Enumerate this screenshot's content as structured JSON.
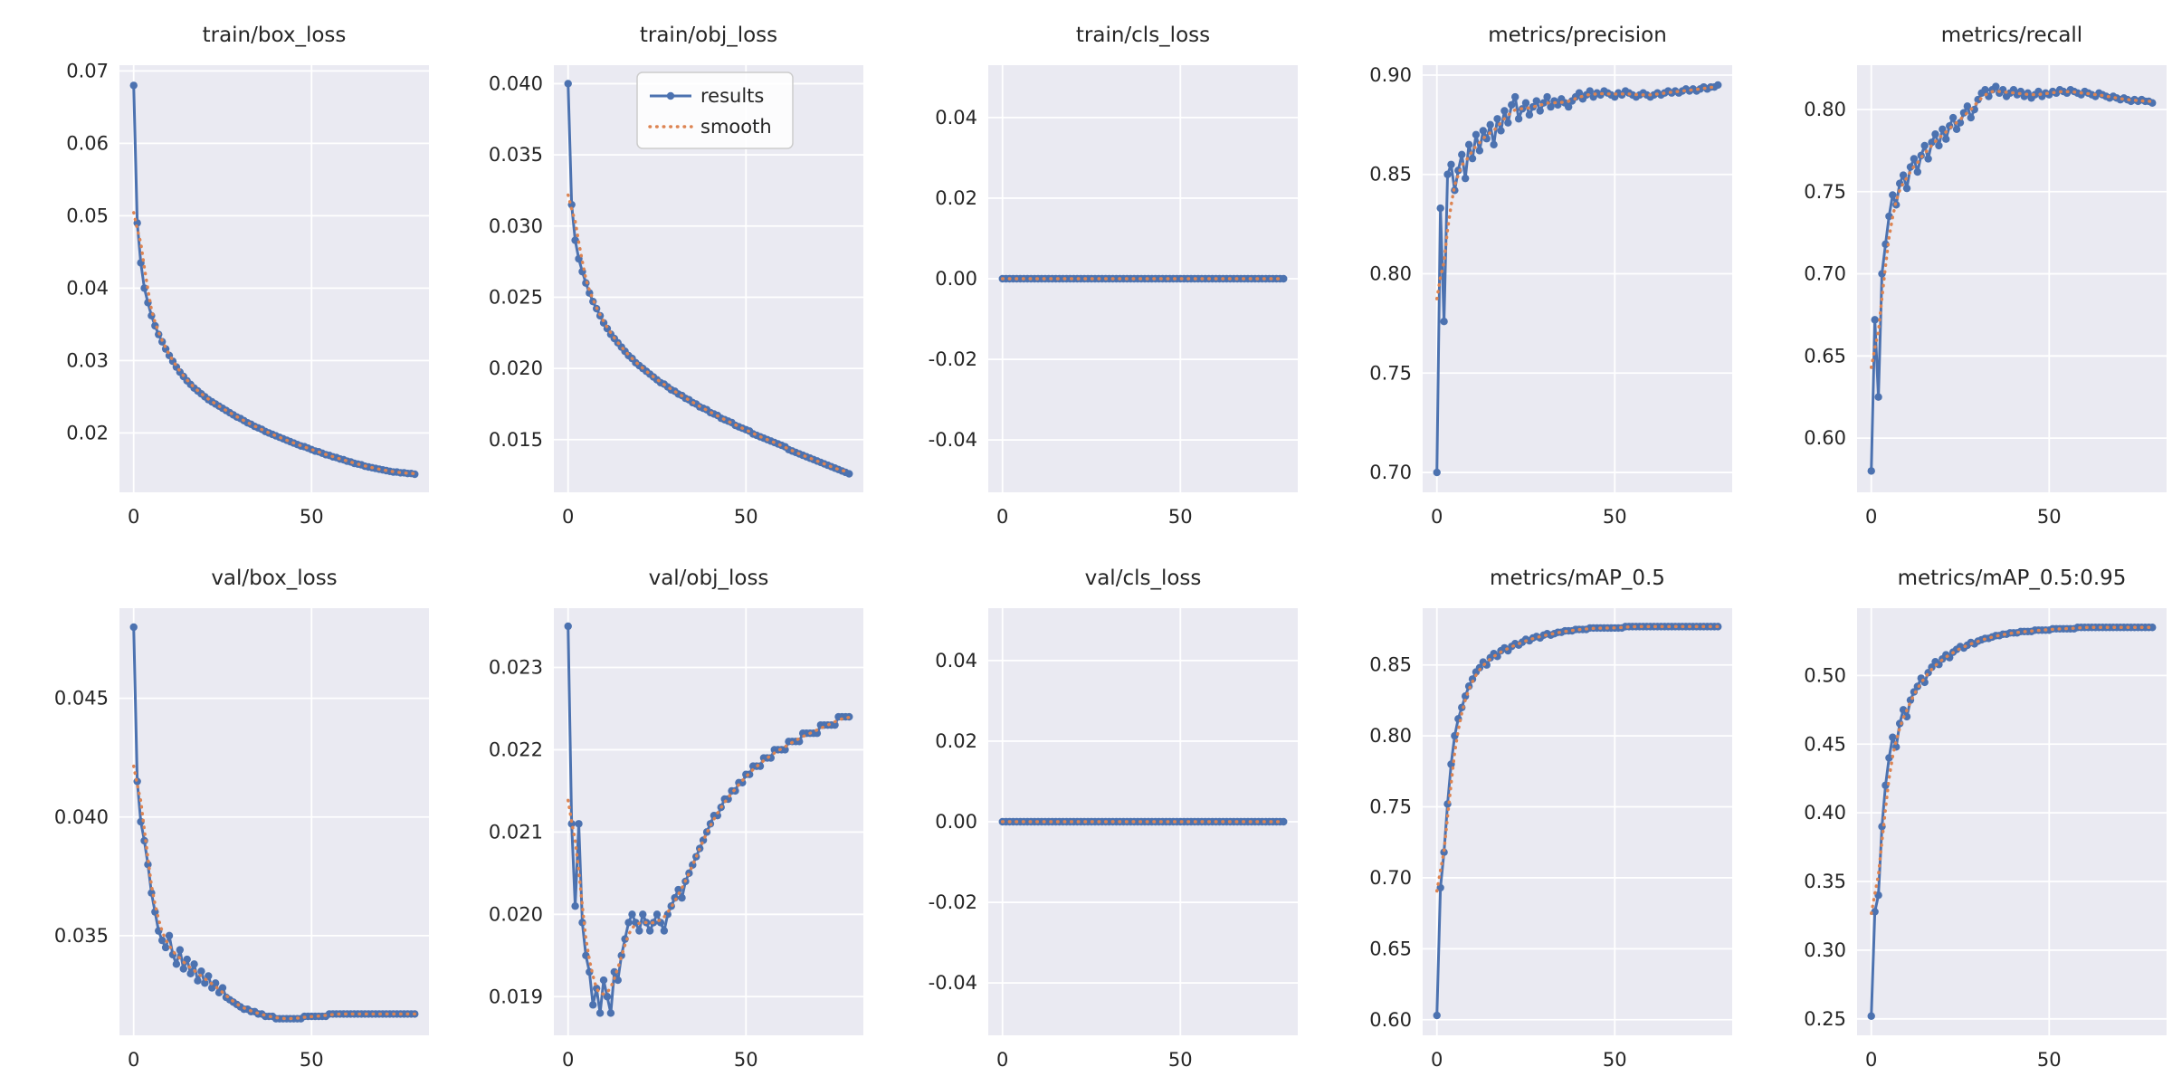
{
  "style": {
    "axes_bg": "#eaeaf2",
    "grid_color": "#ffffff",
    "results_color": "#4c72b0",
    "smooth_color": "#dd8452",
    "text_color": "#262626",
    "figure_bg": "#ffffff"
  },
  "legend": {
    "entries": [
      "results",
      "smooth"
    ]
  },
  "chart_data": [
    {
      "type": "line",
      "title": "train/box_loss",
      "x_start": 0,
      "x_step": 1,
      "xlim": [
        -4,
        83
      ],
      "xticks": [
        0,
        50
      ],
      "xtick_labels": [
        "0",
        "50"
      ],
      "ylim": [
        0.0118,
        0.0708
      ],
      "yticks": [
        0.02,
        0.03,
        0.04,
        0.05,
        0.06,
        0.07
      ],
      "ytick_labels": [
        "0.02",
        "0.03",
        "0.04",
        "0.05",
        "0.06",
        "0.07"
      ],
      "show_legend": false,
      "values": [
        0.068,
        0.049,
        0.0435,
        0.04,
        0.038,
        0.0362,
        0.0348,
        0.0336,
        0.0326,
        0.0316,
        0.0307,
        0.0299,
        0.0291,
        0.0284,
        0.0278,
        0.0272,
        0.0267,
        0.0262,
        0.0258,
        0.0254,
        0.025,
        0.0246,
        0.0243,
        0.024,
        0.0237,
        0.0234,
        0.0231,
        0.0228,
        0.0225,
        0.0222,
        0.022,
        0.0217,
        0.0214,
        0.0212,
        0.0209,
        0.0207,
        0.0205,
        0.0202,
        0.02,
        0.0198,
        0.0196,
        0.0194,
        0.0192,
        0.019,
        0.0188,
        0.0186,
        0.0184,
        0.0182,
        0.0181,
        0.0179,
        0.0177,
        0.0175,
        0.0174,
        0.0172,
        0.017,
        0.0169,
        0.0167,
        0.0166,
        0.0164,
        0.0163,
        0.0161,
        0.016,
        0.0158,
        0.0157,
        0.0156,
        0.0154,
        0.0153,
        0.0152,
        0.0151,
        0.015,
        0.0149,
        0.0148,
        0.0147,
        0.0146,
        0.0146,
        0.0145,
        0.0145,
        0.0144,
        0.0144,
        0.0143
      ]
    },
    {
      "type": "line",
      "title": "train/obj_loss",
      "x_start": 0,
      "x_step": 1,
      "xlim": [
        -4,
        83
      ],
      "xticks": [
        0,
        50
      ],
      "xtick_labels": [
        "0",
        "50"
      ],
      "ylim": [
        0.0113,
        0.0413
      ],
      "yticks": [
        0.015,
        0.02,
        0.025,
        0.03,
        0.035,
        0.04
      ],
      "ytick_labels": [
        "0.015",
        "0.020",
        "0.025",
        "0.030",
        "0.035",
        "0.040"
      ],
      "show_legend": true,
      "values": [
        0.04,
        0.0315,
        0.029,
        0.0277,
        0.0268,
        0.026,
        0.0253,
        0.0247,
        0.0242,
        0.0237,
        0.0232,
        0.0228,
        0.0224,
        0.0221,
        0.0218,
        0.0215,
        0.0212,
        0.0209,
        0.0207,
        0.0204,
        0.0202,
        0.02,
        0.0198,
        0.0196,
        0.0194,
        0.0192,
        0.019,
        0.0189,
        0.0187,
        0.0185,
        0.0184,
        0.0182,
        0.0181,
        0.0179,
        0.0178,
        0.0176,
        0.0175,
        0.0173,
        0.0172,
        0.0171,
        0.0169,
        0.0168,
        0.0167,
        0.0165,
        0.0164,
        0.0163,
        0.0162,
        0.016,
        0.0159,
        0.0158,
        0.0157,
        0.0156,
        0.0154,
        0.0153,
        0.0152,
        0.0151,
        0.015,
        0.0149,
        0.0148,
        0.0147,
        0.0146,
        0.0145,
        0.0143,
        0.0142,
        0.0141,
        0.014,
        0.0139,
        0.0138,
        0.0137,
        0.0136,
        0.0135,
        0.0134,
        0.0133,
        0.0132,
        0.0131,
        0.013,
        0.0129,
        0.0128,
        0.0127,
        0.0126
      ]
    },
    {
      "type": "line",
      "title": "train/cls_loss",
      "x_start": 0,
      "x_step": 1,
      "xlim": [
        -4,
        83
      ],
      "xticks": [
        0,
        50
      ],
      "xtick_labels": [
        "0",
        "50"
      ],
      "ylim": [
        -0.053,
        0.053
      ],
      "yticks": [
        -0.04,
        -0.02,
        0.0,
        0.02,
        0.04
      ],
      "ytick_labels": [
        "-0.04",
        "-0.02",
        "0.00",
        "0.02",
        "0.04"
      ],
      "show_legend": false,
      "values": [
        0,
        0,
        0,
        0,
        0,
        0,
        0,
        0,
        0,
        0,
        0,
        0,
        0,
        0,
        0,
        0,
        0,
        0,
        0,
        0,
        0,
        0,
        0,
        0,
        0,
        0,
        0,
        0,
        0,
        0,
        0,
        0,
        0,
        0,
        0,
        0,
        0,
        0,
        0,
        0,
        0,
        0,
        0,
        0,
        0,
        0,
        0,
        0,
        0,
        0,
        0,
        0,
        0,
        0,
        0,
        0,
        0,
        0,
        0,
        0,
        0,
        0,
        0,
        0,
        0,
        0,
        0,
        0,
        0,
        0,
        0,
        0,
        0,
        0,
        0,
        0,
        0,
        0,
        0,
        0
      ]
    },
    {
      "type": "line",
      "title": "metrics/precision",
      "x_start": 0,
      "x_step": 1,
      "xlim": [
        -4,
        83
      ],
      "xticks": [
        0,
        50
      ],
      "xtick_labels": [
        "0",
        "50"
      ],
      "ylim": [
        0.69,
        0.905
      ],
      "yticks": [
        0.7,
        0.75,
        0.8,
        0.85,
        0.9
      ],
      "ytick_labels": [
        "0.70",
        "0.75",
        "0.80",
        "0.85",
        "0.90"
      ],
      "show_legend": false,
      "values": [
        0.7,
        0.833,
        0.776,
        0.85,
        0.855,
        0.842,
        0.852,
        0.86,
        0.848,
        0.865,
        0.858,
        0.87,
        0.862,
        0.872,
        0.868,
        0.875,
        0.865,
        0.878,
        0.872,
        0.882,
        0.876,
        0.885,
        0.889,
        0.878,
        0.883,
        0.886,
        0.88,
        0.884,
        0.887,
        0.882,
        0.886,
        0.889,
        0.884,
        0.887,
        0.885,
        0.888,
        0.886,
        0.884,
        0.887,
        0.889,
        0.891,
        0.888,
        0.89,
        0.892,
        0.889,
        0.891,
        0.89,
        0.892,
        0.891,
        0.89,
        0.889,
        0.891,
        0.89,
        0.892,
        0.891,
        0.89,
        0.889,
        0.89,
        0.891,
        0.89,
        0.889,
        0.89,
        0.891,
        0.89,
        0.891,
        0.892,
        0.891,
        0.892,
        0.891,
        0.892,
        0.893,
        0.892,
        0.893,
        0.892,
        0.893,
        0.894,
        0.893,
        0.894,
        0.894,
        0.895
      ]
    },
    {
      "type": "line",
      "title": "metrics/recall",
      "x_start": 0,
      "x_step": 1,
      "xlim": [
        -4,
        83
      ],
      "xticks": [
        0,
        50
      ],
      "xtick_labels": [
        "0",
        "50"
      ],
      "ylim": [
        0.567,
        0.827
      ],
      "yticks": [
        0.6,
        0.65,
        0.7,
        0.75,
        0.8
      ],
      "ytick_labels": [
        "0.60",
        "0.65",
        "0.70",
        "0.75",
        "0.80"
      ],
      "show_legend": false,
      "values": [
        0.58,
        0.672,
        0.625,
        0.7,
        0.718,
        0.735,
        0.748,
        0.742,
        0.755,
        0.76,
        0.752,
        0.765,
        0.77,
        0.762,
        0.772,
        0.778,
        0.77,
        0.78,
        0.785,
        0.778,
        0.788,
        0.782,
        0.79,
        0.795,
        0.788,
        0.792,
        0.798,
        0.802,
        0.795,
        0.8,
        0.806,
        0.81,
        0.812,
        0.808,
        0.812,
        0.814,
        0.81,
        0.812,
        0.808,
        0.81,
        0.812,
        0.809,
        0.811,
        0.808,
        0.81,
        0.807,
        0.809,
        0.811,
        0.808,
        0.81,
        0.809,
        0.811,
        0.81,
        0.812,
        0.811,
        0.81,
        0.812,
        0.811,
        0.81,
        0.809,
        0.811,
        0.81,
        0.809,
        0.808,
        0.81,
        0.809,
        0.808,
        0.807,
        0.808,
        0.807,
        0.806,
        0.807,
        0.806,
        0.805,
        0.806,
        0.805,
        0.806,
        0.805,
        0.805,
        0.804
      ]
    },
    {
      "type": "line",
      "title": "val/box_loss",
      "x_start": 0,
      "x_step": 1,
      "xlim": [
        -4,
        83
      ],
      "xticks": [
        0,
        50
      ],
      "xtick_labels": [
        "0",
        "50"
      ],
      "ylim": [
        0.0308,
        0.0488
      ],
      "yticks": [
        0.035,
        0.04,
        0.045
      ],
      "ytick_labels": [
        "0.035",
        "0.040",
        "0.045"
      ],
      "show_legend": false,
      "values": [
        0.048,
        0.0415,
        0.0398,
        0.039,
        0.038,
        0.0368,
        0.036,
        0.0352,
        0.0348,
        0.0345,
        0.035,
        0.0342,
        0.0338,
        0.0344,
        0.0336,
        0.034,
        0.0334,
        0.0338,
        0.0331,
        0.0335,
        0.033,
        0.0333,
        0.0328,
        0.033,
        0.0326,
        0.0328,
        0.0324,
        0.0323,
        0.0322,
        0.0321,
        0.032,
        0.0319,
        0.0319,
        0.0318,
        0.0318,
        0.0317,
        0.0317,
        0.0316,
        0.0316,
        0.0316,
        0.0315,
        0.0315,
        0.0315,
        0.0315,
        0.0315,
        0.0315,
        0.0315,
        0.0315,
        0.0316,
        0.0316,
        0.0316,
        0.0316,
        0.0316,
        0.0316,
        0.0316,
        0.0317,
        0.0317,
        0.0317,
        0.0317,
        0.0317,
        0.0317,
        0.0317,
        0.0317,
        0.0317,
        0.0317,
        0.0317,
        0.0317,
        0.0317,
        0.0317,
        0.0317,
        0.0317,
        0.0317,
        0.0317,
        0.0317,
        0.0317,
        0.0317,
        0.0317,
        0.0317,
        0.0317,
        0.0317
      ]
    },
    {
      "type": "line",
      "title": "val/obj_loss",
      "x_start": 0,
      "x_step": 1,
      "xlim": [
        -4,
        83
      ],
      "xticks": [
        0,
        50
      ],
      "xtick_labels": [
        "0",
        "50"
      ],
      "ylim": [
        0.01853,
        0.02372
      ],
      "yticks": [
        0.019,
        0.02,
        0.021,
        0.022,
        0.023
      ],
      "ytick_labels": [
        "0.019",
        "0.020",
        "0.021",
        "0.022",
        "0.023"
      ],
      "show_legend": false,
      "values": [
        0.0235,
        0.0211,
        0.0201,
        0.0211,
        0.0199,
        0.0195,
        0.0193,
        0.0189,
        0.0191,
        0.0188,
        0.0192,
        0.019,
        0.0188,
        0.0193,
        0.0192,
        0.0195,
        0.0197,
        0.0199,
        0.02,
        0.0199,
        0.0198,
        0.02,
        0.0199,
        0.0198,
        0.0199,
        0.02,
        0.0199,
        0.0198,
        0.02,
        0.0201,
        0.0202,
        0.0203,
        0.0202,
        0.0204,
        0.0205,
        0.0206,
        0.0207,
        0.0208,
        0.0209,
        0.021,
        0.0211,
        0.0212,
        0.0212,
        0.0213,
        0.0214,
        0.0214,
        0.0215,
        0.0215,
        0.0216,
        0.0216,
        0.0217,
        0.0217,
        0.0218,
        0.0218,
        0.0218,
        0.0219,
        0.0219,
        0.0219,
        0.022,
        0.022,
        0.022,
        0.022,
        0.0221,
        0.0221,
        0.0221,
        0.0221,
        0.0222,
        0.0222,
        0.0222,
        0.0222,
        0.0222,
        0.0223,
        0.0223,
        0.0223,
        0.0223,
        0.0223,
        0.0224,
        0.0224,
        0.0224,
        0.0224
      ]
    },
    {
      "type": "line",
      "title": "val/cls_loss",
      "x_start": 0,
      "x_step": 1,
      "xlim": [
        -4,
        83
      ],
      "xticks": [
        0,
        50
      ],
      "xtick_labels": [
        "0",
        "50"
      ],
      "ylim": [
        -0.053,
        0.053
      ],
      "yticks": [
        -0.04,
        -0.02,
        0.0,
        0.02,
        0.04
      ],
      "ytick_labels": [
        "-0.04",
        "-0.02",
        "0.00",
        "0.02",
        "0.04"
      ],
      "show_legend": false,
      "values": [
        0,
        0,
        0,
        0,
        0,
        0,
        0,
        0,
        0,
        0,
        0,
        0,
        0,
        0,
        0,
        0,
        0,
        0,
        0,
        0,
        0,
        0,
        0,
        0,
        0,
        0,
        0,
        0,
        0,
        0,
        0,
        0,
        0,
        0,
        0,
        0,
        0,
        0,
        0,
        0,
        0,
        0,
        0,
        0,
        0,
        0,
        0,
        0,
        0,
        0,
        0,
        0,
        0,
        0,
        0,
        0,
        0,
        0,
        0,
        0,
        0,
        0,
        0,
        0,
        0,
        0,
        0,
        0,
        0,
        0,
        0,
        0,
        0,
        0,
        0,
        0,
        0,
        0,
        0,
        0
      ]
    },
    {
      "type": "line",
      "title": "metrics/mAP_0.5",
      "x_start": 0,
      "x_step": 1,
      "xlim": [
        -4,
        83
      ],
      "xticks": [
        0,
        50
      ],
      "xtick_labels": [
        "0",
        "50"
      ],
      "ylim": [
        0.589,
        0.89
      ],
      "yticks": [
        0.6,
        0.65,
        0.7,
        0.75,
        0.8,
        0.85
      ],
      "ytick_labels": [
        "0.60",
        "0.65",
        "0.70",
        "0.75",
        "0.80",
        "0.85"
      ],
      "show_legend": false,
      "values": [
        0.603,
        0.693,
        0.718,
        0.752,
        0.78,
        0.8,
        0.812,
        0.82,
        0.828,
        0.835,
        0.84,
        0.845,
        0.848,
        0.852,
        0.85,
        0.855,
        0.858,
        0.856,
        0.86,
        0.862,
        0.86,
        0.863,
        0.865,
        0.864,
        0.866,
        0.868,
        0.867,
        0.869,
        0.87,
        0.869,
        0.871,
        0.872,
        0.871,
        0.872,
        0.873,
        0.873,
        0.874,
        0.874,
        0.874,
        0.875,
        0.875,
        0.875,
        0.875,
        0.876,
        0.876,
        0.876,
        0.876,
        0.876,
        0.876,
        0.876,
        0.876,
        0.876,
        0.876,
        0.877,
        0.877,
        0.877,
        0.877,
        0.877,
        0.877,
        0.877,
        0.877,
        0.877,
        0.877,
        0.877,
        0.877,
        0.877,
        0.877,
        0.877,
        0.877,
        0.877,
        0.877,
        0.877,
        0.877,
        0.877,
        0.877,
        0.877,
        0.877,
        0.877,
        0.877,
        0.877
      ]
    },
    {
      "type": "line",
      "title": "metrics/mAP_0.5:0.95",
      "x_start": 0,
      "x_step": 1,
      "xlim": [
        -4,
        83
      ],
      "xticks": [
        0,
        50
      ],
      "xtick_labels": [
        "0",
        "50"
      ],
      "ylim": [
        0.238,
        0.549
      ],
      "yticks": [
        0.25,
        0.3,
        0.35,
        0.4,
        0.45,
        0.5
      ],
      "ytick_labels": [
        "0.25",
        "0.30",
        "0.35",
        "0.40",
        "0.45",
        "0.50"
      ],
      "show_legend": false,
      "values": [
        0.252,
        0.328,
        0.34,
        0.39,
        0.42,
        0.44,
        0.455,
        0.448,
        0.465,
        0.475,
        0.47,
        0.482,
        0.488,
        0.492,
        0.498,
        0.495,
        0.502,
        0.506,
        0.51,
        0.508,
        0.512,
        0.515,
        0.513,
        0.517,
        0.519,
        0.521,
        0.52,
        0.522,
        0.524,
        0.523,
        0.525,
        0.526,
        0.527,
        0.527,
        0.528,
        0.529,
        0.529,
        0.53,
        0.53,
        0.531,
        0.531,
        0.531,
        0.532,
        0.532,
        0.532,
        0.532,
        0.533,
        0.533,
        0.533,
        0.533,
        0.533,
        0.534,
        0.534,
        0.534,
        0.534,
        0.534,
        0.534,
        0.534,
        0.535,
        0.535,
        0.535,
        0.535,
        0.535,
        0.535,
        0.535,
        0.535,
        0.535,
        0.535,
        0.535,
        0.535,
        0.535,
        0.535,
        0.535,
        0.535,
        0.535,
        0.535,
        0.535,
        0.535,
        0.535,
        0.535
      ]
    }
  ]
}
